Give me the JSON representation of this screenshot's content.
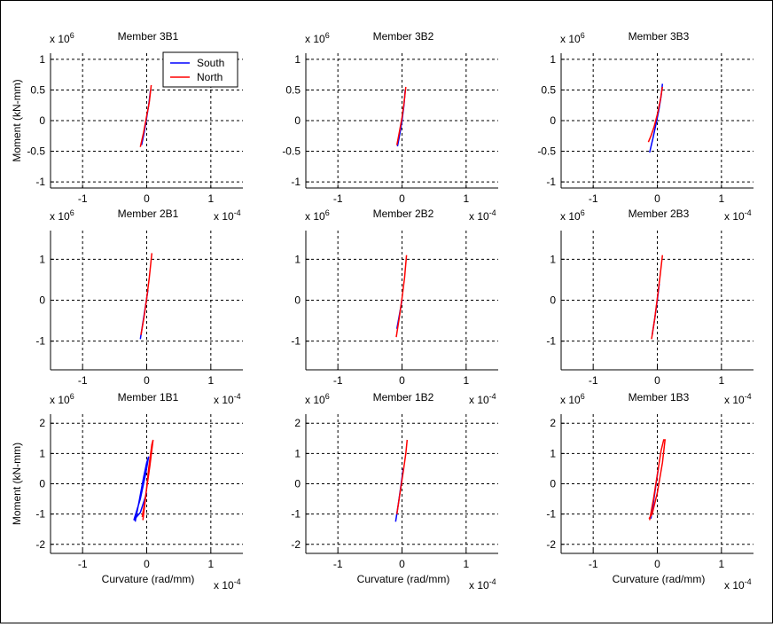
{
  "window": {
    "background": "#ffffff"
  },
  "colors": {
    "south": "#0000ff",
    "north": "#ff0000",
    "grid": "#000000"
  },
  "common": {
    "ylabel": "Moment (kN-mm)",
    "xlabel": "Curvature (rad/mm)",
    "y_multiplier": "x 10",
    "y_exp": "6",
    "x_multiplier": "x 10",
    "x_exp": "-4"
  },
  "legend": {
    "entries": [
      {
        "name": "South",
        "color": "#0000ff"
      },
      {
        "name": "North",
        "color": "#ff0000"
      }
    ]
  },
  "chart_data": [
    {
      "type": "line",
      "title": "Member 3B1",
      "xlim": [
        -1.5,
        1.5
      ],
      "ylim": [
        -1.1,
        1.1
      ],
      "xticks": [
        -1,
        0,
        1
      ],
      "yticks": [
        -1,
        -0.5,
        0,
        0.5,
        1
      ],
      "ylabel": "Moment (kN-mm)",
      "legend": "top-right",
      "series": [
        {
          "name": "South",
          "x": [
            -0.08,
            -0.04,
            0.0,
            0.03,
            0.06
          ],
          "y": [
            -0.4,
            -0.2,
            0.05,
            0.25,
            0.5
          ]
        },
        {
          "name": "North",
          "x": [
            -0.1,
            -0.05,
            0.0,
            0.04,
            0.07
          ],
          "y": [
            -0.43,
            -0.2,
            0.08,
            0.3,
            0.58
          ]
        }
      ]
    },
    {
      "type": "line",
      "title": "Member 3B2",
      "xlim": [
        -1.5,
        1.5
      ],
      "ylim": [
        -1.1,
        1.1
      ],
      "xticks": [
        -1,
        0,
        1
      ],
      "yticks": [
        -1,
        -0.5,
        0,
        0.5,
        1
      ],
      "series": [
        {
          "name": "South",
          "x": [
            -0.07,
            -0.03,
            0.0,
            0.03,
            0.05
          ],
          "y": [
            -0.42,
            -0.2,
            0.0,
            0.25,
            0.5
          ]
        },
        {
          "name": "North",
          "x": [
            -0.08,
            -0.04,
            0.0,
            0.03,
            0.06
          ],
          "y": [
            -0.4,
            -0.18,
            0.05,
            0.28,
            0.55
          ]
        }
      ]
    },
    {
      "type": "line",
      "title": "Member 3B3",
      "xlim": [
        -1.5,
        1.5
      ],
      "ylim": [
        -1.1,
        1.1
      ],
      "xticks": [
        -1,
        0,
        1
      ],
      "yticks": [
        -1,
        -0.5,
        0,
        0.5,
        1
      ],
      "series": [
        {
          "name": "South",
          "x": [
            -0.12,
            -0.07,
            -0.02,
            0.02,
            0.06,
            0.08
          ],
          "y": [
            -0.52,
            -0.3,
            -0.05,
            0.15,
            0.4,
            0.6
          ]
        },
        {
          "name": "North",
          "x": [
            -0.14,
            -0.1,
            -0.05,
            0.0,
            0.05,
            0.08
          ],
          "y": [
            -0.35,
            -0.25,
            -0.1,
            0.1,
            0.35,
            0.55
          ]
        }
      ]
    },
    {
      "type": "line",
      "title": "Member 2B1",
      "xlim": [
        -1.5,
        1.5
      ],
      "ylim": [
        -1.7,
        1.7
      ],
      "xticks": [
        -1,
        0,
        1
      ],
      "yticks": [
        -1,
        0,
        1
      ],
      "series": [
        {
          "name": "South",
          "x": [
            -0.1,
            -0.06,
            -0.02,
            0.02
          ],
          "y": [
            -0.95,
            -0.55,
            -0.15,
            0.25
          ]
        },
        {
          "name": "North",
          "x": [
            -0.09,
            -0.04,
            0.0,
            0.04,
            0.08
          ],
          "y": [
            -0.85,
            -0.4,
            0.05,
            0.55,
            1.15
          ]
        }
      ]
    },
    {
      "type": "line",
      "title": "Member 2B2",
      "xlim": [
        -1.5,
        1.5
      ],
      "ylim": [
        -1.7,
        1.7
      ],
      "xticks": [
        -1,
        0,
        1
      ],
      "yticks": [
        -1,
        0,
        1
      ],
      "series": [
        {
          "name": "South",
          "x": [
            -0.08,
            -0.04,
            0.0
          ],
          "y": [
            -0.7,
            -0.35,
            0.0
          ]
        },
        {
          "name": "North",
          "x": [
            -0.09,
            -0.04,
            0.0,
            0.04,
            0.07
          ],
          "y": [
            -0.9,
            -0.4,
            0.05,
            0.55,
            1.1
          ]
        }
      ]
    },
    {
      "type": "line",
      "title": "Member 2B3",
      "xlim": [
        -1.5,
        1.5
      ],
      "ylim": [
        -1.7,
        1.7
      ],
      "xticks": [
        -1,
        0,
        1
      ],
      "yticks": [
        -1,
        0,
        1
      ],
      "series": [
        {
          "name": "South",
          "x": [
            -0.08,
            -0.04,
            0.0,
            0.03
          ],
          "y": [
            -0.85,
            -0.45,
            0.0,
            0.4
          ]
        },
        {
          "name": "North",
          "x": [
            -0.09,
            -0.04,
            0.0,
            0.04,
            0.08
          ],
          "y": [
            -0.95,
            -0.45,
            0.05,
            0.55,
            1.1
          ]
        }
      ]
    },
    {
      "type": "line",
      "title": "Member 1B1",
      "xlim": [
        -1.5,
        1.5
      ],
      "ylim": [
        -2.3,
        2.3
      ],
      "xticks": [
        -1,
        0,
        1
      ],
      "yticks": [
        -2,
        -1,
        0,
        1,
        2
      ],
      "ylabel": "Moment (kN-mm)",
      "xlabel": "Curvature (rad/mm)",
      "series": [
        {
          "name": "South",
          "x": [
            -0.18,
            -0.12,
            -0.05,
            0.0,
            0.03,
            -0.02,
            -0.1,
            -0.2,
            -0.1,
            0.0
          ],
          "y": [
            -1.25,
            -0.6,
            0.2,
            0.7,
            0.9,
            0.3,
            -0.5,
            -1.2,
            -0.95,
            -0.3
          ]
        },
        {
          "name": "North",
          "x": [
            -0.06,
            -0.02,
            0.03,
            0.08,
            0.1,
            0.05,
            -0.03,
            -0.07
          ],
          "y": [
            -1.2,
            -0.5,
            0.5,
            1.3,
            1.45,
            0.6,
            -0.6,
            -1.1
          ]
        }
      ]
    },
    {
      "type": "line",
      "title": "Member 1B2",
      "xlim": [
        -1.5,
        1.5
      ],
      "ylim": [
        -2.3,
        2.3
      ],
      "xticks": [
        -1,
        0,
        1
      ],
      "yticks": [
        -2,
        -1,
        0,
        1,
        2
      ],
      "xlabel": "Curvature (rad/mm)",
      "series": [
        {
          "name": "South",
          "x": [
            -0.1,
            -0.06,
            -0.02,
            0.02
          ],
          "y": [
            -1.25,
            -0.7,
            -0.1,
            0.5
          ]
        },
        {
          "name": "North",
          "x": [
            -0.08,
            -0.03,
            0.02,
            0.06,
            0.08
          ],
          "y": [
            -1.0,
            -0.3,
            0.4,
            1.0,
            1.45
          ]
        }
      ]
    },
    {
      "type": "line",
      "title": "Member 1B3",
      "xlim": [
        -1.5,
        1.5
      ],
      "ylim": [
        -2.3,
        2.3
      ],
      "xticks": [
        -1,
        0,
        1
      ],
      "yticks": [
        -2,
        -1,
        0,
        1,
        2
      ],
      "xlabel": "Curvature (rad/mm)",
      "series": [
        {
          "name": "South",
          "x": [
            -0.1,
            -0.06,
            -0.02,
            0.02
          ],
          "y": [
            -1.15,
            -0.6,
            0.0,
            0.55
          ]
        },
        {
          "name": "North",
          "x": [
            -0.12,
            -0.06,
            0.0,
            0.06,
            0.1,
            0.12,
            0.08,
            0.0,
            -0.08,
            -0.13
          ],
          "y": [
            -1.2,
            -0.5,
            0.3,
            1.1,
            1.45,
            1.45,
            0.7,
            -0.3,
            -1.0,
            -1.15
          ]
        }
      ]
    }
  ]
}
